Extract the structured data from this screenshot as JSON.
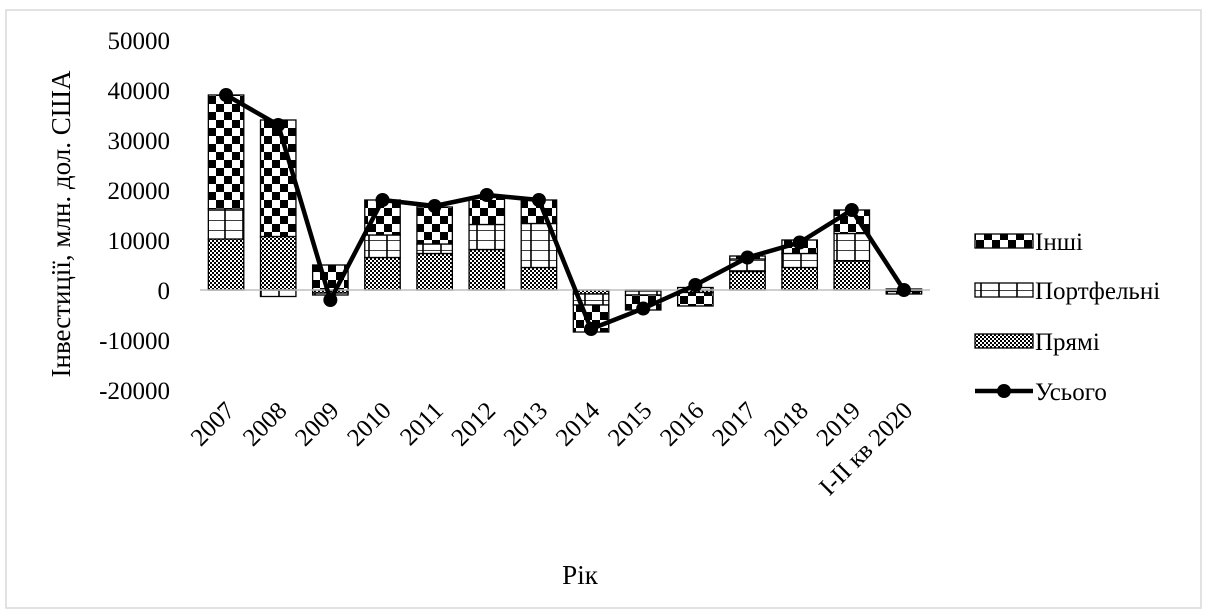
{
  "chart_data": {
    "type": "bar",
    "stacked": true,
    "categories": [
      "2007",
      "2008",
      "2009",
      "2010",
      "2011",
      "2012",
      "2013",
      "2014",
      "2015",
      "2016",
      "2017",
      "2018",
      "2019",
      "I-II кв 2020"
    ],
    "series": [
      {
        "name": "Прямі",
        "type": "bar",
        "pattern": "crosshatch-dots",
        "values": [
          10200,
          10700,
          -600,
          6500,
          7300,
          8100,
          4500,
          -800,
          -200,
          -500,
          3700,
          4500,
          5800,
          200
        ]
      },
      {
        "name": "Портфельні",
        "type": "bar",
        "pattern": "grid",
        "values": [
          6000,
          0,
          -400,
          4500,
          1900,
          5000,
          8800,
          -2200,
          -800,
          500,
          2500,
          2800,
          5500,
          -300
        ]
      },
      {
        "name": "Інші",
        "type": "bar",
        "pattern": "checker",
        "values": [
          22800,
          23300,
          5000,
          7000,
          7400,
          5400,
          4700,
          -5400,
          -3000,
          -2700,
          600,
          2700,
          4700,
          -500
        ],
        "negative_first": [
          0,
          -1300,
          0,
          0,
          0,
          0,
          0,
          0,
          0,
          0,
          0,
          0,
          0,
          0
        ]
      },
      {
        "name": "Усього",
        "type": "line",
        "marker": "circle",
        "values": [
          39000,
          33000,
          -2000,
          18000,
          16800,
          19000,
          18000,
          -7800,
          -3700,
          1000,
          6500,
          9500,
          16000,
          0
        ]
      }
    ],
    "xlabel": "Рік",
    "ylabel": "Інвестиції, млн. дол. США",
    "ylim": [
      -20000,
      50000
    ],
    "yticks": [
      50000,
      40000,
      30000,
      20000,
      10000,
      0,
      -10000,
      -20000
    ],
    "yticklabels": [
      "50000",
      "40000",
      "30000",
      "20000",
      "10000",
      "0",
      "-10000",
      "-20000"
    ],
    "grid": false,
    "legend": {
      "placement": "right",
      "entries": [
        "Інші",
        "Портфельні",
        "Прямі",
        "Усього"
      ]
    },
    "colors": {
      "line": "#000000",
      "bar_stroke": "#000000",
      "background": "#ffffff"
    }
  }
}
